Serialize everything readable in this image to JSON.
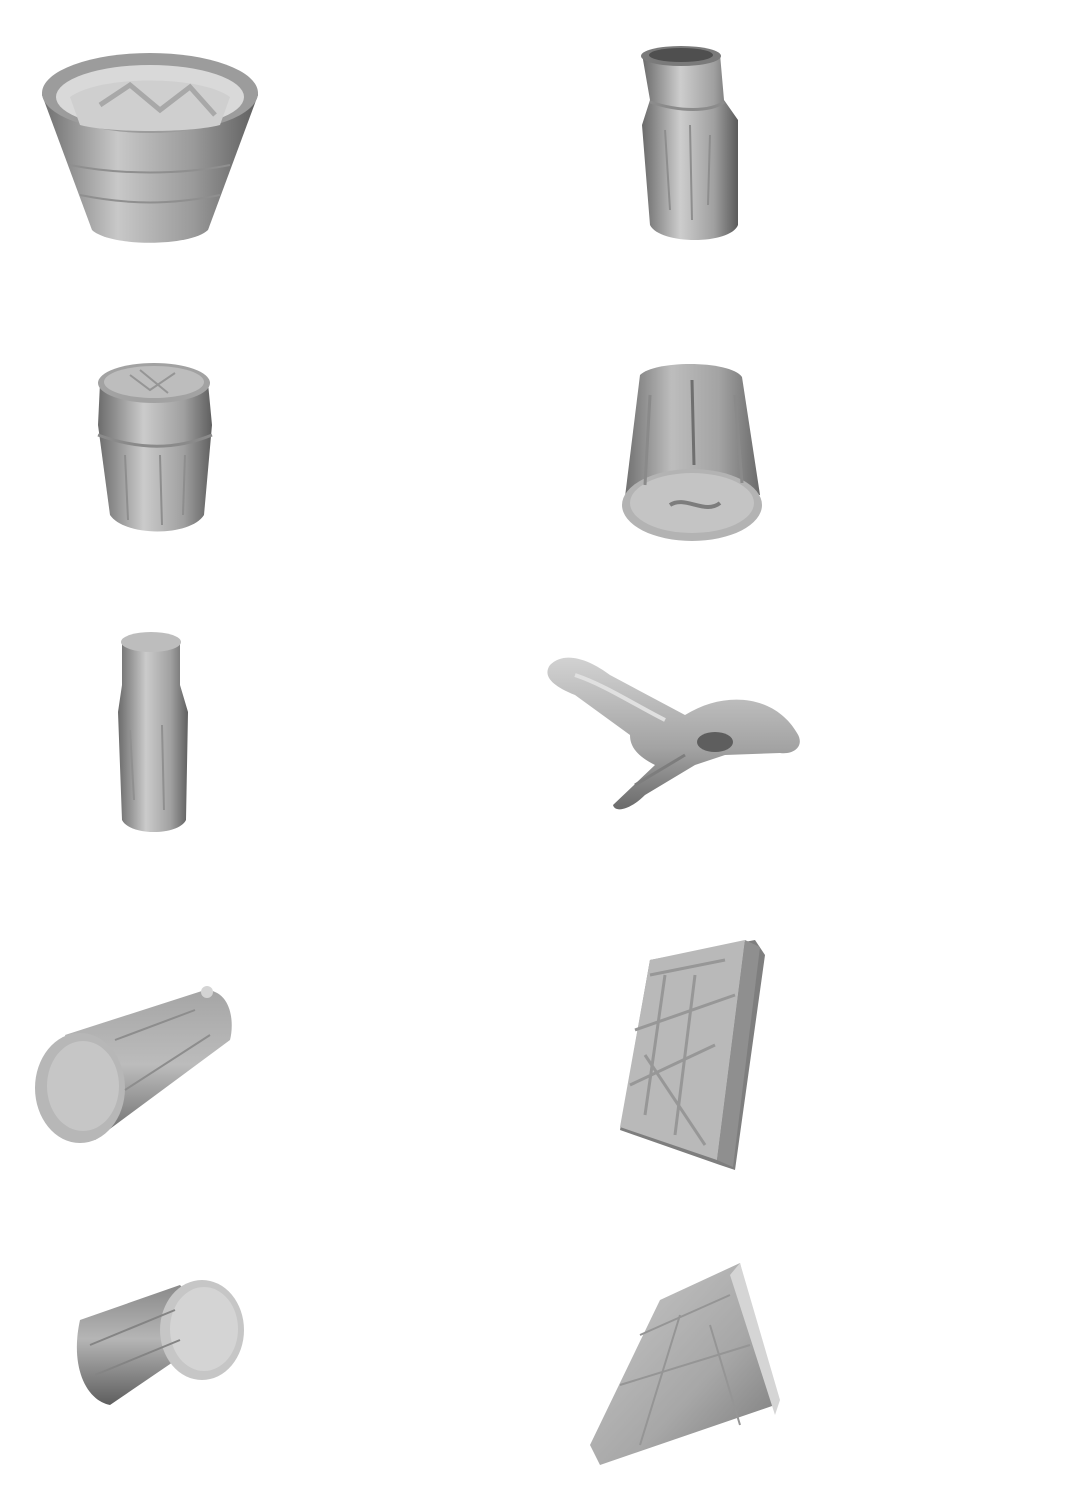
{
  "objects": [
    {
      "shape": "tapered-bowl",
      "color": "#a8a8a8"
    },
    {
      "shape": "jar-with-neck",
      "color": "#b0b0b0"
    },
    {
      "shape": "short-jar",
      "color": "#a9a9a9"
    },
    {
      "shape": "tilted-cylinder",
      "color": "#a5a5a5"
    },
    {
      "shape": "bottle",
      "color": "#acacac"
    },
    {
      "shape": "spring-clamp",
      "color": "#b2b2b2"
    },
    {
      "shape": "lying-cylinder",
      "color": "#a7a7a7"
    },
    {
      "shape": "box",
      "color": "#a6a6a6"
    },
    {
      "shape": "small-cylinder",
      "color": "#a4a4a4"
    },
    {
      "shape": "wedge-block",
      "color": "#acacac"
    }
  ]
}
